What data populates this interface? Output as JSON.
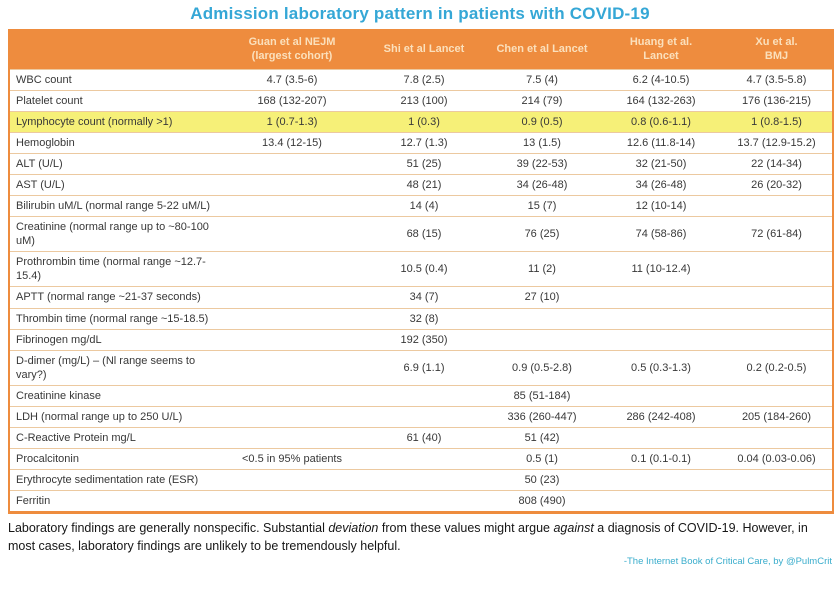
{
  "title": "Admission laboratory pattern in patients with COVID-19",
  "colors": {
    "title_blue": "#35a7d6",
    "header_orange": "#ee8c3e",
    "header_text": "#fbe0bc",
    "row_border": "#ecc9a0",
    "highlight_yellow": "#f6f078",
    "attribution_teal": "#3aadcc"
  },
  "table": {
    "columns": [
      "",
      "Guan et al NEJM\n(largest cohort)",
      "Shi et al Lancet",
      "Chen et al Lancet",
      "Huang et al.\nLancet",
      "Xu et al.\nBMJ"
    ],
    "rows": [
      {
        "label": "WBC count",
        "values": [
          "4.7 (3.5-6)",
          "7.8 (2.5)",
          "7.5 (4)",
          "6.2 (4-10.5)",
          "4.7 (3.5-5.8)"
        ],
        "highlight": false
      },
      {
        "label": "Platelet count",
        "values": [
          "168 (132-207)",
          "213 (100)",
          "214 (79)",
          "164 (132-263)",
          "176 (136-215)"
        ],
        "highlight": false
      },
      {
        "label": "Lymphocyte count (normally >1)",
        "values": [
          "1 (0.7-1.3)",
          "1 (0.3)",
          "0.9 (0.5)",
          "0.8 (0.6-1.1)",
          "1 (0.8-1.5)"
        ],
        "highlight": true
      },
      {
        "label": "Hemoglobin",
        "values": [
          "13.4 (12-15)",
          "12.7 (1.3)",
          "13 (1.5)",
          "12.6 (11.8-14)",
          "13.7 (12.9-15.2)"
        ],
        "highlight": false
      },
      {
        "label": "ALT (U/L)",
        "values": [
          "",
          "51 (25)",
          "39 (22-53)",
          "32 (21-50)",
          "22 (14-34)"
        ],
        "highlight": false
      },
      {
        "label": "AST (U/L)",
        "values": [
          "",
          "48 (21)",
          "34 (26-48)",
          "34 (26-48)",
          "26 (20-32)"
        ],
        "highlight": false
      },
      {
        "label": "Bilirubin uM/L (normal range 5-22 uM/L)",
        "values": [
          "",
          "14 (4)",
          "15 (7)",
          "12 (10-14)",
          ""
        ],
        "highlight": false
      },
      {
        "label": "Creatinine (normal range up to ~80-100 uM)",
        "values": [
          "",
          "68 (15)",
          "76 (25)",
          "74 (58-86)",
          "72 (61-84)"
        ],
        "highlight": false
      },
      {
        "label": "Prothrombin time (normal range ~12.7-15.4)",
        "values": [
          "",
          "10.5 (0.4)",
          "11 (2)",
          "11 (10-12.4)",
          ""
        ],
        "highlight": false
      },
      {
        "label": "APTT (normal range ~21-37 seconds)",
        "values": [
          "",
          "34 (7)",
          "27 (10)",
          "",
          ""
        ],
        "highlight": false
      },
      {
        "label": "Thrombin time (normal range ~15-18.5)",
        "values": [
          "",
          "32 (8)",
          "",
          "",
          ""
        ],
        "highlight": false
      },
      {
        "label": "Fibrinogen mg/dL",
        "values": [
          "",
          "192 (350)",
          "",
          "",
          ""
        ],
        "highlight": false
      },
      {
        "label": "D-dimer (mg/L) – (Nl range seems to vary?)",
        "values": [
          "",
          "6.9 (1.1)",
          "0.9 (0.5-2.8)",
          "0.5 (0.3-1.3)",
          "0.2 (0.2-0.5)"
        ],
        "highlight": false
      },
      {
        "label": "Creatinine kinase",
        "values": [
          "",
          "",
          "85 (51-184)",
          "",
          ""
        ],
        "highlight": false
      },
      {
        "label": "LDH (normal range up to 250 U/L)",
        "values": [
          "",
          "",
          "336 (260-447)",
          "286 (242-408)",
          "205 (184-260)"
        ],
        "highlight": false
      },
      {
        "label": "C-Reactive Protein mg/L",
        "values": [
          "",
          "61 (40)",
          "51 (42)",
          "",
          ""
        ],
        "highlight": false
      },
      {
        "label": "Procalcitonin",
        "values": [
          "<0.5 in 95% patients",
          "",
          "0.5 (1)",
          "0.1 (0.1-0.1)",
          "0.04 (0.03-0.06)"
        ],
        "highlight": false
      },
      {
        "label": "Erythrocyte sedimentation rate (ESR)",
        "values": [
          "",
          "",
          "50 (23)",
          "",
          ""
        ],
        "highlight": false
      },
      {
        "label": "Ferritin",
        "values": [
          "",
          "",
          "808 (490)",
          "",
          ""
        ],
        "highlight": false
      }
    ]
  },
  "footer": {
    "segments": [
      {
        "text": "Laboratory findings are generally nonspecific.  Substantial ",
        "italic": false
      },
      {
        "text": "deviation",
        "italic": true
      },
      {
        "text": " from these values might argue ",
        "italic": false
      },
      {
        "text": "against",
        "italic": true
      },
      {
        "text": " a diagnosis of COVID-19.  However, in most cases, laboratory findings are unlikely to be tremendously helpful.",
        "italic": false
      }
    ],
    "attribution": "-The Internet Book of Critical Care, by @PulmCrit"
  }
}
